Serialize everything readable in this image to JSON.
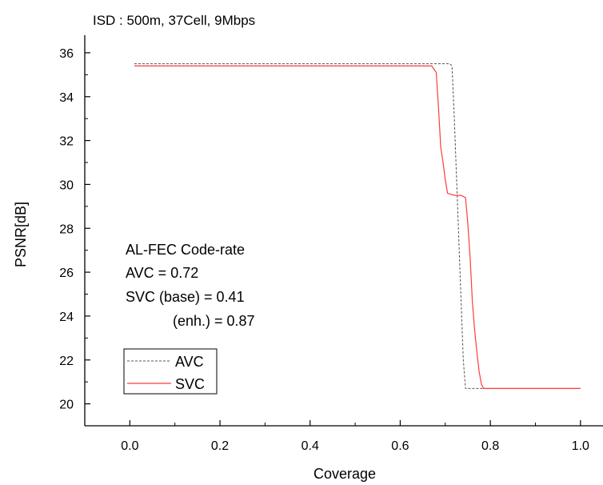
{
  "chart_data": {
    "type": "line",
    "title": "ISD : 500m, 37Cell, 9Mbps",
    "xlabel": "Coverage",
    "ylabel": "PSNR[dB]",
    "xlim": [
      -0.1,
      1.05
    ],
    "ylim": [
      19.0,
      36.8
    ],
    "xticks": [
      0.0,
      0.2,
      0.4,
      0.6,
      0.8,
      1.0
    ],
    "xtick_labels": [
      "0.0",
      "0.2",
      "0.4",
      "0.6",
      "0.8",
      "1.0"
    ],
    "yticks": [
      20,
      22,
      24,
      26,
      28,
      30,
      32,
      34,
      36
    ],
    "ytick_labels": [
      "20",
      "22",
      "24",
      "26",
      "28",
      "30",
      "32",
      "34",
      "36"
    ],
    "grid": false,
    "annotation": [
      "AL-FEC Code-rate",
      "AVC = 0.72",
      "SVC (base) = 0.41",
      "(enh.) = 0.87"
    ],
    "legend": {
      "position": "lower-left"
    },
    "series": [
      {
        "name": "AVC",
        "color": "#555555",
        "style": "dashed",
        "x": [
          0.01,
          0.71,
          0.715,
          0.72,
          0.73,
          0.74,
          0.745,
          0.75,
          0.79,
          1.0
        ],
        "y": [
          35.5,
          35.5,
          35.4,
          33.0,
          27.5,
          22.0,
          20.7,
          20.7,
          20.7,
          20.7
        ]
      },
      {
        "name": "SVC",
        "color": "#ff3b3b",
        "style": "solid",
        "x": [
          0.01,
          0.67,
          0.68,
          0.685,
          0.69,
          0.695,
          0.7,
          0.705,
          0.72,
          0.735,
          0.745,
          0.75,
          0.755,
          0.76,
          0.765,
          0.77,
          0.775,
          0.78,
          0.785,
          1.0
        ],
        "y": [
          35.4,
          35.4,
          35.1,
          33.5,
          31.7,
          31.0,
          30.2,
          29.6,
          29.5,
          29.5,
          29.4,
          28.2,
          26.7,
          24.7,
          23.4,
          22.4,
          21.5,
          20.9,
          20.7,
          20.7
        ]
      }
    ]
  }
}
